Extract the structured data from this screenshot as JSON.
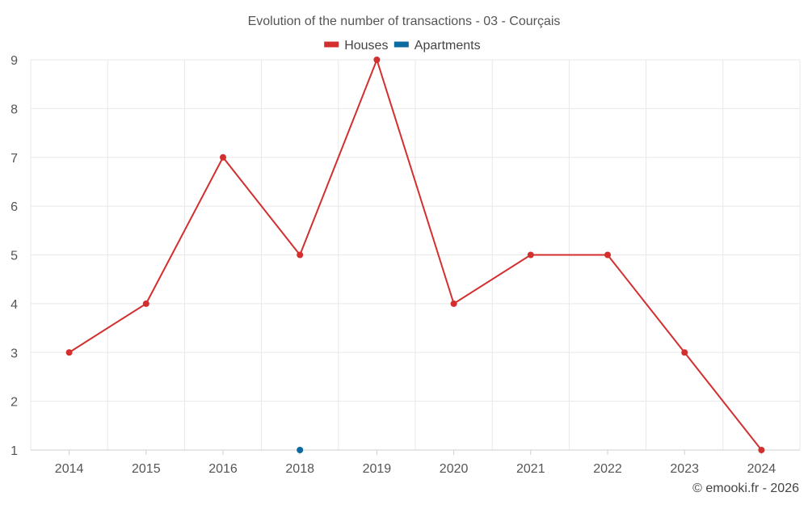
{
  "chart_data": {
    "type": "line",
    "title": "Evolution of the number of transactions - 03 - Courçais",
    "categories": [
      "2014",
      "2015",
      "2016",
      "2018",
      "2019",
      "2020",
      "2021",
      "2022",
      "2023",
      "2024"
    ],
    "series": [
      {
        "name": "Houses",
        "color": "#d32f2f",
        "values": [
          3,
          4,
          7,
          5,
          9,
          4,
          5,
          5,
          3,
          1
        ]
      },
      {
        "name": "Apartments",
        "color": "#0b6aa0",
        "values": [
          null,
          null,
          null,
          1,
          null,
          null,
          null,
          null,
          null,
          null
        ]
      }
    ],
    "yticks": [
      "1",
      "2",
      "3",
      "4",
      "5",
      "6",
      "7",
      "8",
      "9"
    ],
    "ylim": [
      1,
      9
    ],
    "grid": true,
    "legend_position": "top-center",
    "xlabel": "",
    "ylabel": ""
  },
  "credit": "© emooki.fr - 2026"
}
